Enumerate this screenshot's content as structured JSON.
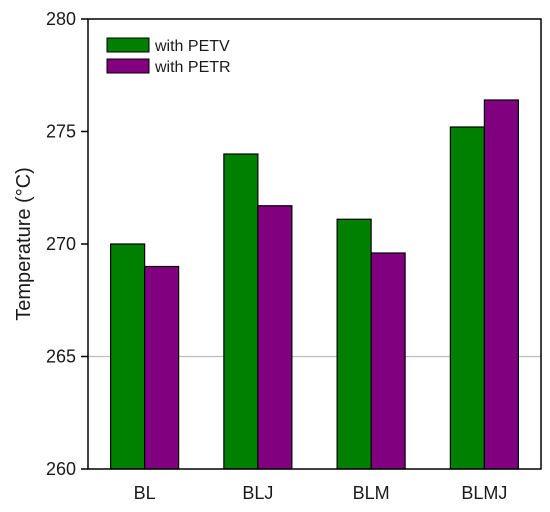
{
  "chart_data": {
    "type": "bar",
    "categories": [
      "BL",
      "BLJ",
      "BLM",
      "BLMJ"
    ],
    "series": [
      {
        "name": "with PETV",
        "values": [
          270.0,
          274.0,
          271.1,
          275.2
        ],
        "color": "#008000"
      },
      {
        "name": "with PETR",
        "values": [
          269.0,
          271.7,
          269.6,
          276.4
        ],
        "color": "#800080"
      }
    ],
    "title": "",
    "xlabel": "",
    "ylabel": "Temperature (°C)",
    "ylim": [
      260,
      280
    ],
    "yticks": [
      "260",
      "265",
      "270",
      "275",
      "280"
    ],
    "reference_line": {
      "value": 265,
      "color": "#bdbdbd"
    },
    "legend_position": "top-left",
    "grid": false
  }
}
